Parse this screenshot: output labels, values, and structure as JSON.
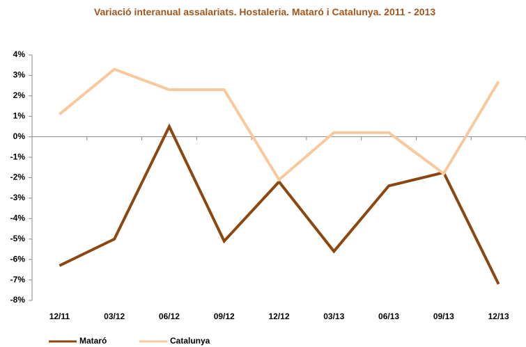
{
  "chart_data": {
    "type": "line",
    "title": "Variació interanual assalariats. Hostaleria. Mataró i Catalunya. 2011 - 2013",
    "categories": [
      "12/11",
      "03/12",
      "06/12",
      "09/12",
      "12/12",
      "03/13",
      "06/13",
      "09/13",
      "12/13"
    ],
    "series": [
      {
        "name": "Mataró",
        "color": "#8c4710",
        "values": [
          -6.3,
          -5.0,
          0.5,
          -5.1,
          -2.2,
          -5.6,
          -2.4,
          -1.75,
          -7.2
        ]
      },
      {
        "name": "Catalunya",
        "color": "#f8c99c",
        "values": [
          1.1,
          3.3,
          2.3,
          2.3,
          -2.1,
          0.2,
          0.2,
          -1.8,
          2.7
        ]
      }
    ],
    "ylim": [
      -8,
      4
    ],
    "yticks": [
      {
        "value": -8,
        "label": "-8%"
      },
      {
        "value": -7,
        "label": "-7%"
      },
      {
        "value": -6,
        "label": "-6%"
      },
      {
        "value": -5,
        "label": "-5%"
      },
      {
        "value": -4,
        "label": "-4%"
      },
      {
        "value": -3,
        "label": "-3%"
      },
      {
        "value": -2,
        "label": "-2%"
      },
      {
        "value": -1,
        "label": "-1%"
      },
      {
        "value": 0,
        "label": "0%"
      },
      {
        "value": 1,
        "label": "1%"
      },
      {
        "value": 2,
        "label": "2%"
      },
      {
        "value": 3,
        "label": "3%"
      },
      {
        "value": 4,
        "label": "4%"
      }
    ],
    "grid": false,
    "legend": "bottom"
  }
}
